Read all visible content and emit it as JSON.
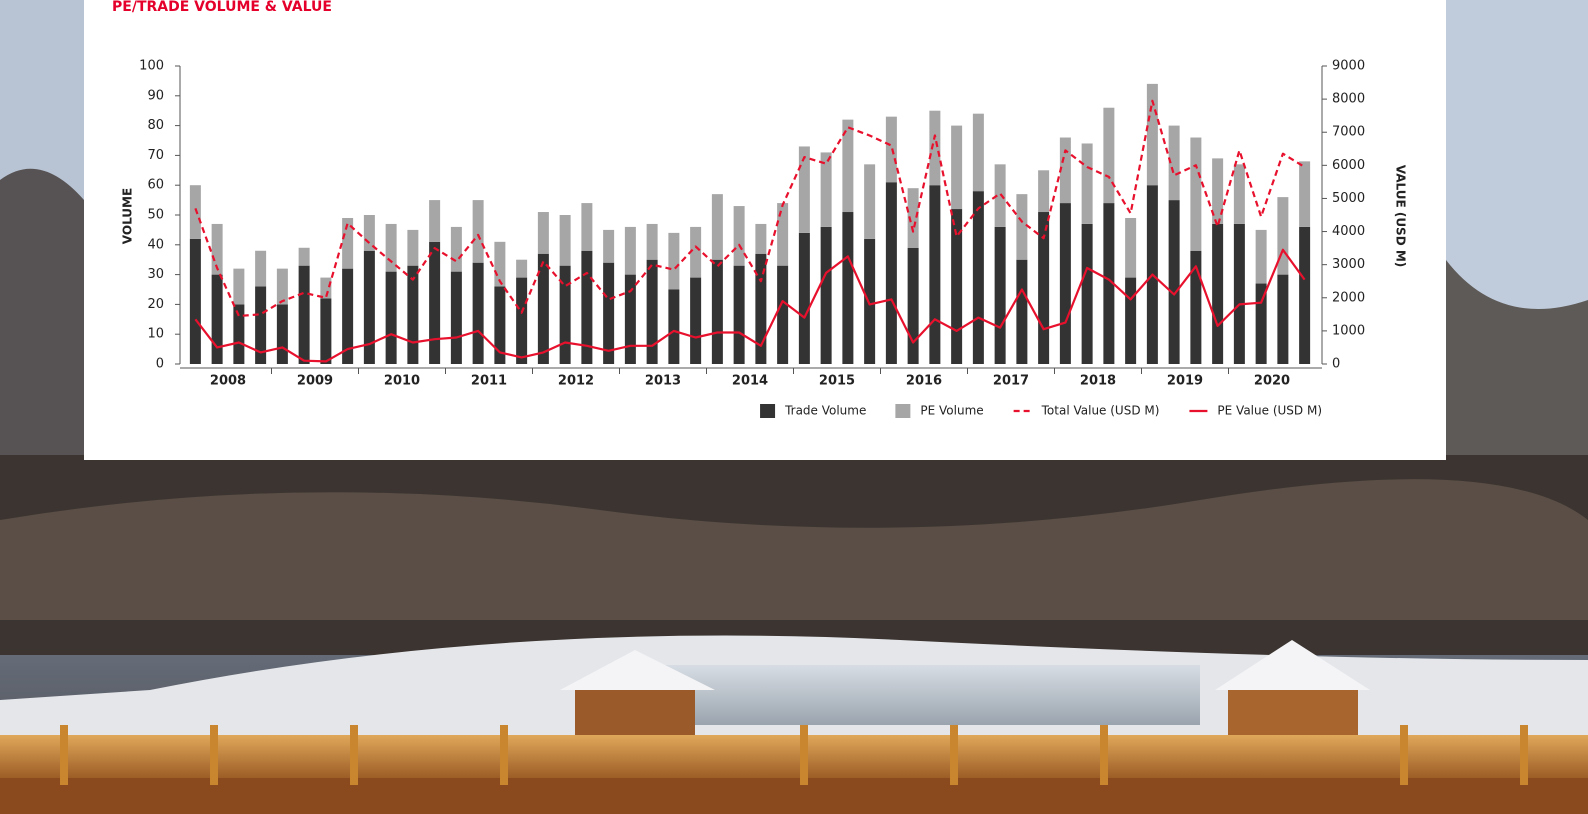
{
  "chart_data": {
    "type": "bar",
    "title": "PE/TRADE VOLUME & VALUE",
    "y_label": "VOLUME",
    "y2_label": "VALUE (USD M)",
    "categories": [
      "2008",
      null,
      null,
      null,
      "2009",
      null,
      null,
      null,
      "2010",
      null,
      null,
      null,
      "2011",
      null,
      null,
      null,
      "2012",
      null,
      null,
      null,
      "2013",
      null,
      null,
      null,
      "2014",
      null,
      null,
      null,
      "2015",
      null,
      null,
      null,
      "2016",
      null,
      null,
      null,
      "2017",
      null,
      null,
      null,
      "2018",
      null,
      null,
      null,
      "2019",
      null,
      null,
      null,
      "2020",
      null,
      null,
      null
    ],
    "stacked": true,
    "grid": false,
    "legend": "bottom-right",
    "ylim": [
      0,
      100
    ],
    "yticks": [
      0,
      10,
      20,
      30,
      40,
      50,
      60,
      70,
      80,
      90,
      100
    ],
    "y2lim": [
      0,
      9000
    ],
    "y2ticks": [
      0,
      1000,
      2000,
      3000,
      4000,
      5000,
      6000,
      7000,
      8000,
      9000
    ],
    "series": [
      {
        "name": "Trade Volume",
        "type": "bar",
        "color": "#333333",
        "values": [
          42,
          30,
          20,
          26,
          20,
          33,
          22,
          32,
          38,
          31,
          33,
          41,
          31,
          34,
          26,
          29,
          37,
          33,
          38,
          34,
          30,
          35,
          25,
          29,
          35,
          33,
          37,
          33,
          44,
          46,
          51,
          42,
          61,
          39,
          60,
          52,
          58,
          46,
          35,
          51,
          54,
          47,
          54,
          29,
          60,
          55,
          38,
          47,
          47,
          27,
          30,
          46
        ]
      },
      {
        "name": "PE Volume",
        "type": "bar",
        "color": "#a6a6a6",
        "values": [
          18,
          17,
          12,
          12,
          12,
          6,
          7,
          17,
          12,
          16,
          12,
          14,
          15,
          21,
          15,
          6,
          14,
          17,
          16,
          11,
          16,
          12,
          19,
          17,
          22,
          20,
          10,
          21,
          29,
          25,
          31,
          25,
          22,
          20,
          25,
          28,
          26,
          21,
          22,
          14,
          22,
          27,
          32,
          20,
          34,
          25,
          38,
          22,
          20,
          18,
          26,
          22
        ]
      },
      {
        "name": "Total Value (USD M)",
        "type": "line",
        "axis": "y2",
        "color": "#e8112d",
        "line_style": "dashed",
        "values": [
          4700,
          2900,
          1450,
          1500,
          1900,
          2150,
          2000,
          4250,
          3650,
          3100,
          2550,
          3500,
          3100,
          3900,
          2500,
          1550,
          3100,
          2350,
          2750,
          1950,
          2200,
          3000,
          2850,
          3550,
          2950,
          3600,
          2500,
          4800,
          6250,
          6050,
          7150,
          6900,
          6600,
          4000,
          6900,
          3850,
          4700,
          5150,
          4300,
          3800,
          6450,
          5950,
          5650,
          4550,
          7950,
          5700,
          6000,
          4150,
          6450,
          4450,
          6350,
          5950
        ]
      },
      {
        "name": "PE Value (USD M)",
        "type": "line",
        "axis": "y2",
        "color": "#e8112d",
        "line_style": "solid",
        "values": [
          1350,
          500,
          650,
          350,
          500,
          100,
          80,
          450,
          600,
          900,
          650,
          750,
          800,
          1000,
          350,
          200,
          350,
          650,
          550,
          400,
          550,
          550,
          1000,
          800,
          950,
          950,
          550,
          1900,
          1400,
          2750,
          3250,
          1800,
          1950,
          650,
          1350,
          1000,
          1400,
          1100,
          2250,
          1050,
          1250,
          2900,
          2550,
          1950,
          2700,
          2100,
          2950,
          1150,
          1800,
          1850,
          3450,
          2550
        ]
      }
    ]
  }
}
